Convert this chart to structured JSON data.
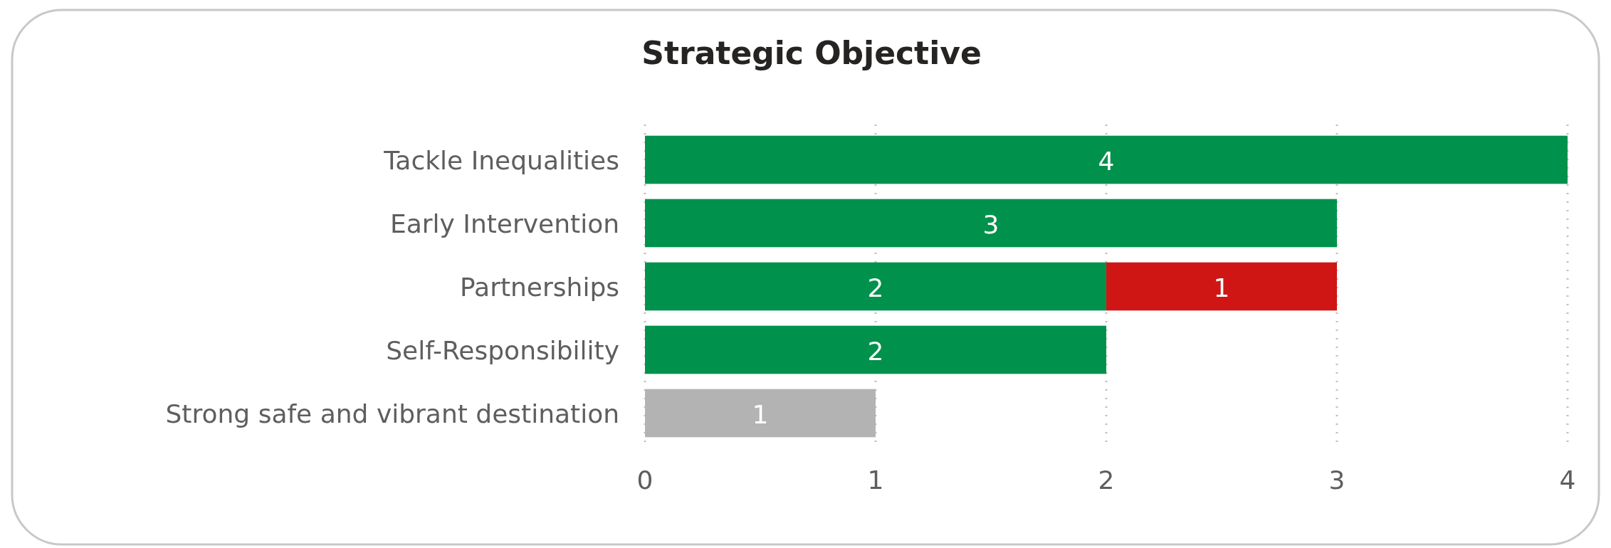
{
  "chart_data": {
    "type": "bar",
    "title": "Strategic Objective",
    "orientation": "horizontal",
    "stacked": true,
    "categories": [
      "Tackle Inequalities",
      "Early Intervention",
      "Partnerships",
      "Self-Responsibility",
      "Strong safe and vibrant destination"
    ],
    "series": [
      {
        "color": "#00914c",
        "values": [
          4,
          3,
          2,
          2,
          null
        ]
      },
      {
        "color": "#d01515",
        "values": [
          null,
          null,
          1,
          null,
          null
        ]
      },
      {
        "color": "#b3b3b3",
        "values": [
          null,
          null,
          null,
          null,
          1
        ]
      }
    ],
    "xlim": [
      0,
      4
    ],
    "xticks": [
      0,
      1,
      2,
      3,
      4
    ],
    "grid": "x",
    "data_labels": true
  }
}
